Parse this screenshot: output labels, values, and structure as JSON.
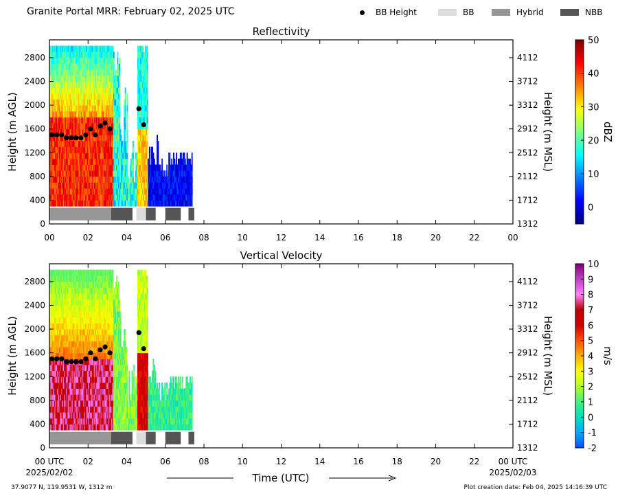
{
  "header": {
    "title": "Granite Portal MRR:  February 02, 2025 UTC",
    "legend": [
      {
        "label": "BB Height",
        "kind": "dot",
        "color": "#000000"
      },
      {
        "label": "BB",
        "kind": "swatch",
        "color": "#dcdcdc"
      },
      {
        "label": "Hybrid",
        "kind": "swatch",
        "color": "#969696"
      },
      {
        "label": "NBB",
        "kind": "swatch",
        "color": "#555555"
      }
    ]
  },
  "footer": {
    "coords": "37.9077 N, 119.9531 W, 1312 m",
    "created": "Plot creation date: Feb 04, 2025 14:16:39 UTC",
    "xlabel": "Time (UTC)",
    "start_date": "2025/02/02",
    "end_date": "2025/02/03"
  },
  "chart_data": [
    {
      "type": "heatmap",
      "title": "Reflectivity",
      "ylabel": "Height (m AGL)",
      "y2label": "Height (m MSL)",
      "xlabel": "",
      "xlim": [
        0,
        24
      ],
      "ylim": [
        0,
        3100
      ],
      "x_ticks": [
        "00",
        "02",
        "04",
        "06",
        "08",
        "10",
        "12",
        "14",
        "16",
        "18",
        "20",
        "22",
        "00"
      ],
      "y_ticks": [
        0,
        400,
        800,
        1200,
        1600,
        2000,
        2400,
        2800
      ],
      "y2_ticks": [
        1312,
        1712,
        2112,
        2512,
        2912,
        3312,
        3712,
        4112
      ],
      "colorbar": {
        "label": "dBZ",
        "min": -5,
        "max": 50,
        "ticks": [
          0,
          10,
          20,
          30,
          40,
          50
        ],
        "stops": [
          "#00007f",
          "#0000ff",
          "#007fff",
          "#00ffff",
          "#7fff7f",
          "#ffff00",
          "#ff7f00",
          "#ff0000",
          "#7f0000"
        ]
      },
      "bb_height": {
        "x": [
          0.13,
          0.38,
          0.63,
          0.88,
          1.13,
          1.38,
          1.63,
          1.88,
          2.13,
          2.38,
          2.63,
          2.88,
          3.13,
          4.63,
          4.88
        ],
        "y": [
          1500,
          1500,
          1500,
          1450,
          1450,
          1450,
          1450,
          1500,
          1600,
          1500,
          1650,
          1700,
          1600,
          1940,
          1670
        ]
      },
      "bb_bars": [
        {
          "start": 0.0,
          "end": 3.2,
          "class": "Hybrid"
        },
        {
          "start": 3.2,
          "end": 4.3,
          "class": "NBB"
        },
        {
          "start": 4.5,
          "end": 5.0,
          "class": "BB"
        },
        {
          "start": 5.0,
          "end": 5.5,
          "class": "NBB"
        },
        {
          "start": 6.0,
          "end": 6.8,
          "class": "NBB"
        },
        {
          "start": 7.2,
          "end": 7.5,
          "class": "NBB"
        }
      ]
    },
    {
      "type": "heatmap",
      "title": "Vertical Velocity",
      "ylabel": "Height (m AGL)",
      "y2label": "Height (m MSL)",
      "xlabel": "Time (UTC)",
      "xlim": [
        0,
        24
      ],
      "ylim": [
        0,
        3100
      ],
      "x_ticks": [
        "00 UTC",
        "02",
        "04",
        "06",
        "08",
        "10",
        "12",
        "14",
        "16",
        "18",
        "20",
        "22",
        "00 UTC"
      ],
      "y_ticks": [
        0,
        400,
        800,
        1200,
        1600,
        2000,
        2400,
        2800
      ],
      "y2_ticks": [
        1312,
        1712,
        2112,
        2512,
        2912,
        3312,
        3712,
        4112
      ],
      "colorbar": {
        "label": "m/s",
        "min": -2,
        "max": 10,
        "ticks": [
          -2,
          -1,
          0,
          1,
          2,
          3,
          4,
          5,
          6,
          7,
          8,
          9,
          10
        ],
        "stops": [
          "#0050ff",
          "#00aaff",
          "#00e0c0",
          "#40f080",
          "#b0ff20",
          "#ffff00",
          "#ffb000",
          "#ff5000",
          "#d00000",
          "#c00000",
          "#ff80ff",
          "#c040c0",
          "#800080"
        ]
      },
      "bb_height": {
        "x": [
          0.13,
          0.38,
          0.63,
          0.88,
          1.13,
          1.38,
          1.63,
          1.88,
          2.13,
          2.38,
          2.63,
          2.88,
          3.13,
          4.63,
          4.88
        ],
        "y": [
          1500,
          1500,
          1500,
          1450,
          1450,
          1450,
          1450,
          1500,
          1600,
          1500,
          1650,
          1700,
          1600,
          1940,
          1670
        ]
      },
      "bb_bars": [
        {
          "start": 0.0,
          "end": 3.2,
          "class": "Hybrid"
        },
        {
          "start": 3.2,
          "end": 4.3,
          "class": "NBB"
        },
        {
          "start": 4.5,
          "end": 5.0,
          "class": "BB"
        },
        {
          "start": 5.0,
          "end": 5.5,
          "class": "NBB"
        },
        {
          "start": 6.0,
          "end": 6.8,
          "class": "NBB"
        },
        {
          "start": 7.2,
          "end": 7.5,
          "class": "NBB"
        }
      ]
    }
  ]
}
